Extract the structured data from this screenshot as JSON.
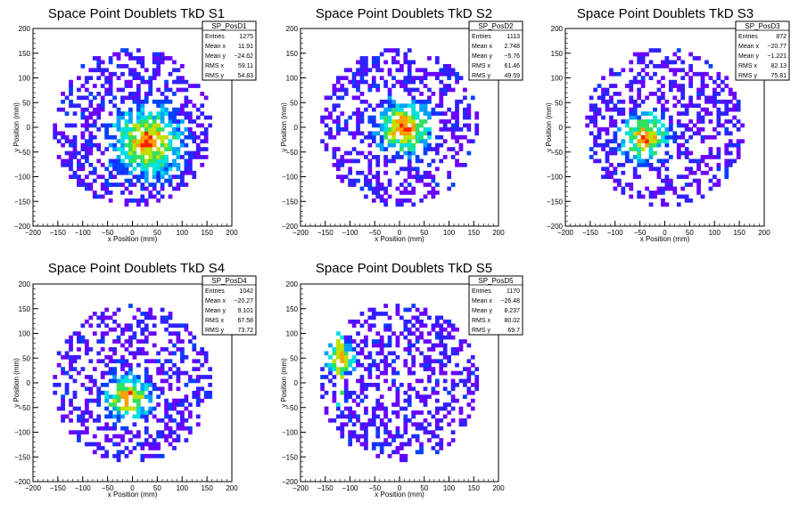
{
  "chart_data": [
    {
      "type": "heatmap",
      "title": "Space Point Doublets TkD S1",
      "xlabel": "x Position (mm)",
      "ylabel": "y Position (mm)",
      "xlim": [
        -200,
        200
      ],
      "ylim": [
        -200,
        200
      ],
      "x_ticks": [
        "−200",
        "−150",
        "−100",
        "−50",
        "0",
        "50",
        "100",
        "150",
        "200"
      ],
      "y_ticks": [
        "−200",
        "−150",
        "−100",
        "−50",
        "0",
        "50",
        "100",
        "150",
        "200"
      ],
      "stats": {
        "name": "SP_PosD1",
        "rows": [
          [
            "Entries",
            "1275"
          ],
          [
            "Mean x",
            "11.91"
          ],
          [
            "Mean y",
            "−24.62"
          ],
          [
            "RMS x",
            "59.11"
          ],
          [
            "RMS y",
            "54.83"
          ]
        ]
      },
      "peak": {
        "x": 30,
        "y": -30,
        "radius": 45
      },
      "grid": false
    },
    {
      "type": "heatmap",
      "title": "Space Point Doublets TkD S2",
      "xlabel": "x Position (mm)",
      "ylabel": "y Position (mm)",
      "xlim": [
        -200,
        200
      ],
      "ylim": [
        -200,
        200
      ],
      "x_ticks": [
        "−200",
        "−150",
        "−100",
        "−50",
        "0",
        "50",
        "100",
        "150",
        "200"
      ],
      "y_ticks": [
        "−200",
        "−150",
        "−100",
        "−50",
        "0",
        "50",
        "100",
        "150",
        "200"
      ],
      "stats": {
        "name": "SP_PosD2",
        "rows": [
          [
            "Entries",
            "1113"
          ],
          [
            "Mean x",
            "2.748"
          ],
          [
            "Mean y",
            "−5.76"
          ],
          [
            "RMS x",
            "61.46"
          ],
          [
            "RMS y",
            "49.59"
          ]
        ]
      },
      "peak": {
        "x": 10,
        "y": 0,
        "radius": 35
      },
      "grid": false
    },
    {
      "type": "heatmap",
      "title": "Space Point Doublets TkD S3",
      "xlabel": "x Position (mm)",
      "ylabel": "y Position (mm)",
      "xlim": [
        -200,
        200
      ],
      "ylim": [
        -200,
        200
      ],
      "x_ticks": [
        "−200",
        "−150",
        "−100",
        "−50",
        "0",
        "50",
        "100",
        "150",
        "200"
      ],
      "y_ticks": [
        "−200",
        "−150",
        "−100",
        "−50",
        "0",
        "50",
        "100",
        "150",
        "200"
      ],
      "stats": {
        "name": "SP_PosD3",
        "rows": [
          [
            "Entries",
            "872"
          ],
          [
            "Mean x",
            "−20.77"
          ],
          [
            "Mean y",
            "−1.221"
          ],
          [
            "RMS x",
            "82.13"
          ],
          [
            "RMS y",
            "75.81"
          ]
        ]
      },
      "peak": {
        "x": -40,
        "y": -20,
        "radius": 30
      },
      "grid": false
    },
    {
      "type": "heatmap",
      "title": "Space Point Doublets TkD S4",
      "xlabel": "x Position (mm)",
      "ylabel": "y Position (mm)",
      "xlim": [
        -200,
        200
      ],
      "ylim": [
        -200,
        200
      ],
      "x_ticks": [
        "−200",
        "−150",
        "−100",
        "−50",
        "0",
        "50",
        "100",
        "150",
        "200"
      ],
      "y_ticks": [
        "−200",
        "−150",
        "−100",
        "−50",
        "0",
        "50",
        "100",
        "150",
        "200"
      ],
      "stats": {
        "name": "SP_PosD4",
        "rows": [
          [
            "Entries",
            "1042"
          ],
          [
            "Mean x",
            "−20.27"
          ],
          [
            "Mean y",
            "9.101"
          ],
          [
            "RMS x",
            "67.58"
          ],
          [
            "RMS y",
            "73.72"
          ]
        ]
      },
      "peak": {
        "x": -10,
        "y": -30,
        "radius": 30
      },
      "grid": false
    },
    {
      "type": "heatmap",
      "title": "Space Point Doublets TkD S5",
      "xlabel": "x Position (mm)",
      "ylabel": "y Position (mm)",
      "xlim": [
        -200,
        200
      ],
      "ylim": [
        -200,
        200
      ],
      "x_ticks": [
        "−200",
        "−150",
        "−100",
        "−50",
        "0",
        "50",
        "100",
        "150",
        "200"
      ],
      "y_ticks": [
        "−200",
        "−150",
        "−100",
        "−50",
        "0",
        "50",
        "100",
        "150",
        "200"
      ],
      "stats": {
        "name": "SP_PosD5",
        "rows": [
          [
            "Entries",
            "1170"
          ],
          [
            "Mean x",
            "−26.48"
          ],
          [
            "Mean y",
            "8.237"
          ],
          [
            "RMS x",
            "80.02"
          ],
          [
            "RMS y",
            "69.7"
          ]
        ]
      },
      "peak": {
        "x": -120,
        "y": 50,
        "radius": 20
      },
      "grid": false
    }
  ],
  "colors": {
    "palette": [
      "#6a00ff",
      "#3020ff",
      "#0040ff",
      "#00a0ff",
      "#00e0e0",
      "#30e060",
      "#c0e000",
      "#ffa000",
      "#ff2000"
    ],
    "frame": "#000000",
    "background": "#ffffff"
  }
}
